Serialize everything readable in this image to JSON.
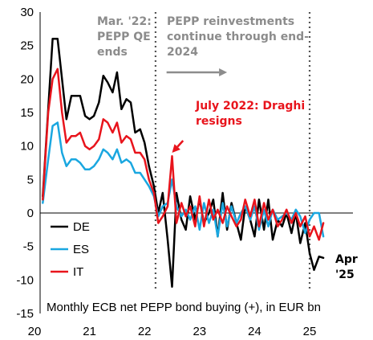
{
  "chart_data": {
    "type": "line",
    "title": "",
    "xlabel": "",
    "ylabel": "",
    "caption": "Monthly ECB net PEPP bond buying (+), in EUR bn",
    "xlim": [
      20.0,
      25.5
    ],
    "ylim": [
      -15,
      30
    ],
    "x_ticks": [
      20,
      21,
      22,
      23,
      24,
      25
    ],
    "y_ticks": [
      -15,
      -10,
      -5,
      0,
      5,
      10,
      15,
      20,
      25,
      30
    ],
    "grid": false,
    "legend_placement": "bottom-left",
    "colors": {
      "DE": "#000000",
      "ES": "#1aa7e0",
      "IT": "#e8141c",
      "annotation_grey": "#8c8c8c",
      "annotation_red": "#e8141c"
    },
    "vlines": [
      22.2,
      25.0
    ],
    "annotations": [
      {
        "text_lines": [
          "Mar. '22:",
          "PEPP QE",
          "ends"
        ],
        "color": "annotation_grey"
      },
      {
        "text_lines": [
          "PEPP reinvestments",
          "continue through end-",
          "2024"
        ],
        "color": "annotation_grey"
      },
      {
        "text_lines": [
          "July 2022: Draghi",
          "resigns"
        ],
        "color": "annotation_red"
      },
      {
        "text_lines": [
          "Apr",
          "'25"
        ],
        "color": "DE"
      }
    ],
    "arrows": [
      {
        "from": [
          22.4,
          21.0
        ],
        "to": [
          23.5,
          21.0
        ],
        "color": "annotation_grey"
      },
      {
        "from": [
          22.7,
          10.8
        ],
        "to": [
          22.5,
          9.0
        ],
        "color": "annotation_red"
      }
    ],
    "series": [
      {
        "name": "DE",
        "x": [
          20.15,
          20.25,
          20.33,
          20.42,
          20.5,
          20.58,
          20.67,
          20.75,
          20.83,
          20.92,
          21.0,
          21.08,
          21.17,
          21.25,
          21.33,
          21.42,
          21.5,
          21.58,
          21.67,
          21.75,
          21.83,
          21.92,
          22.0,
          22.08,
          22.17,
          22.25,
          22.33,
          22.42,
          22.5,
          22.58,
          22.67,
          22.75,
          22.83,
          22.92,
          23.0,
          23.08,
          23.17,
          23.25,
          23.33,
          23.42,
          23.5,
          23.58,
          23.67,
          23.75,
          23.83,
          23.92,
          24.0,
          24.08,
          24.17,
          24.25,
          24.33,
          24.42,
          24.5,
          24.58,
          24.67,
          24.75,
          24.83,
          24.92,
          25.0,
          25.08,
          25.17,
          25.25
        ],
        "values": [
          2.5,
          15.5,
          26.0,
          26.0,
          20.0,
          14.0,
          17.5,
          17.5,
          17.5,
          14.5,
          14.0,
          14.5,
          16.5,
          20.5,
          19.5,
          18.0,
          21.0,
          15.5,
          17.0,
          16.5,
          12.0,
          12.5,
          10.5,
          7.0,
          4.0,
          0.0,
          3.0,
          -4.0,
          -11.0,
          3.0,
          -1.0,
          -2.5,
          2.5,
          -1.0,
          2.0,
          -1.5,
          0.0,
          2.0,
          -3.5,
          3.0,
          -2.5,
          1.5,
          -1.5,
          -4.0,
          1.0,
          -1.0,
          -3.5,
          2.0,
          -2.5,
          2.0,
          -4.0,
          -1.0,
          -2.0,
          0.0,
          -3.0,
          0.0,
          -4.5,
          -1.5,
          -6.0,
          -8.5,
          -6.5,
          -6.7
        ]
      },
      {
        "name": "ES",
        "x": [
          20.15,
          20.25,
          20.33,
          20.42,
          20.5,
          20.58,
          20.67,
          20.75,
          20.83,
          20.92,
          21.0,
          21.08,
          21.17,
          21.25,
          21.33,
          21.42,
          21.5,
          21.58,
          21.67,
          21.75,
          21.83,
          21.92,
          22.0,
          22.08,
          22.17,
          22.25,
          22.33,
          22.42,
          22.5,
          22.58,
          22.67,
          22.75,
          22.83,
          22.92,
          23.0,
          23.08,
          23.17,
          23.25,
          23.33,
          23.42,
          23.5,
          23.58,
          23.67,
          23.75,
          23.83,
          23.92,
          24.0,
          24.08,
          24.17,
          24.25,
          24.33,
          24.42,
          24.5,
          24.58,
          24.67,
          24.75,
          24.83,
          24.92,
          25.0,
          25.08,
          25.17,
          25.25
        ],
        "values": [
          1.5,
          8.0,
          13.0,
          13.5,
          9.0,
          7.0,
          8.0,
          8.0,
          7.5,
          6.5,
          6.5,
          7.0,
          8.0,
          9.5,
          9.0,
          8.0,
          9.5,
          7.5,
          8.0,
          7.5,
          6.0,
          6.0,
          5.0,
          4.0,
          2.5,
          -0.5,
          1.0,
          1.5,
          5.0,
          1.0,
          -0.5,
          0.5,
          -1.0,
          1.0,
          -2.5,
          1.5,
          -1.5,
          0.5,
          -3.5,
          1.5,
          -2.0,
          1.0,
          -1.5,
          0.0,
          1.0,
          -1.0,
          1.0,
          -2.5,
          0.5,
          -2.0,
          0.5,
          -1.0,
          -0.5,
          0.0,
          -1.0,
          0.5,
          -0.5,
          -3.0,
          -1.0,
          0.0,
          0.0,
          -3.5
        ]
      },
      {
        "name": "IT",
        "x": [
          20.15,
          20.25,
          20.33,
          20.42,
          20.5,
          20.58,
          20.67,
          20.75,
          20.83,
          20.92,
          21.0,
          21.08,
          21.17,
          21.25,
          21.33,
          21.42,
          21.5,
          21.58,
          21.67,
          21.75,
          21.83,
          21.92,
          22.0,
          22.08,
          22.17,
          22.25,
          22.33,
          22.42,
          22.5,
          22.58,
          22.67,
          22.75,
          22.83,
          22.92,
          23.0,
          23.08,
          23.17,
          23.25,
          23.33,
          23.42,
          23.5,
          23.58,
          23.67,
          23.75,
          23.83,
          23.92,
          24.0,
          24.08,
          24.17,
          24.25,
          24.33,
          24.42,
          24.5,
          24.58,
          24.67,
          24.75,
          24.83,
          24.92,
          25.0,
          25.08,
          25.17,
          25.25
        ],
        "values": [
          2.0,
          15.0,
          20.0,
          21.5,
          15.0,
          10.5,
          11.5,
          11.5,
          12.0,
          10.0,
          9.5,
          10.0,
          11.0,
          14.0,
          13.5,
          12.0,
          13.5,
          10.5,
          11.5,
          11.0,
          9.0,
          9.0,
          8.0,
          5.0,
          3.0,
          -1.5,
          -0.5,
          1.0,
          8.5,
          -1.5,
          1.5,
          -0.5,
          1.0,
          -2.0,
          2.5,
          -2.0,
          2.0,
          -1.0,
          0.5,
          -1.5,
          1.0,
          -0.5,
          -2.0,
          -1.0,
          2.0,
          -0.5,
          2.0,
          -2.0,
          1.5,
          -1.0,
          0.5,
          -2.0,
          -1.0,
          0.5,
          -1.5,
          0.0,
          -2.0,
          -0.5,
          -3.5,
          -2.0,
          -4.0,
          -1.5
        ]
      }
    ]
  }
}
